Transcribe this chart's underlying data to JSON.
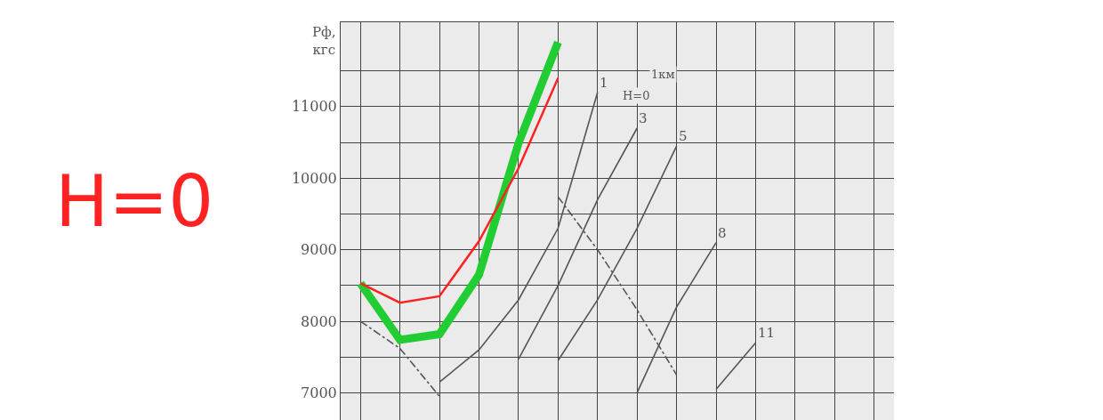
{
  "chart_data": {
    "type": "line",
    "ylabel": "Рф,\nкгс",
    "categories": [
      null,
      null,
      null,
      null,
      null,
      null,
      null,
      null,
      null,
      null,
      null,
      null,
      null,
      null
    ],
    "series": [
      {
        "color": "#22cc33",
        "values": [
          8530,
          7740,
          7820,
          8650,
          10490,
          11900,
          null,
          null,
          null,
          null,
          null,
          null,
          null,
          null
        ]
      },
      {
        "color": "#ff2222",
        "values": [
          8530,
          8260,
          8350,
          9120,
          10140,
          11400,
          null,
          null,
          null,
          null,
          null,
          null,
          null,
          null
        ]
      },
      {
        "name": "1",
        "color": "#555555",
        "values": [
          null,
          null,
          7150,
          7600,
          8300,
          9300,
          11200,
          null,
          null,
          null,
          null,
          null,
          null,
          null
        ]
      },
      {
        "name": "3",
        "color": "#555555",
        "values": [
          null,
          null,
          null,
          null,
          7470,
          8500,
          9700,
          10700,
          null,
          null,
          null,
          null,
          null,
          null
        ]
      },
      {
        "name": "5",
        "color": "#555555",
        "values": [
          null,
          null,
          null,
          null,
          null,
          7450,
          8300,
          9300,
          10450,
          null,
          null,
          null,
          null,
          null
        ]
      },
      {
        "name": "8",
        "color": "#555555",
        "values": [
          null,
          null,
          null,
          null,
          null,
          null,
          null,
          7000,
          8200,
          9100,
          null,
          null,
          null,
          null
        ]
      },
      {
        "name": "11",
        "color": "#555555",
        "values": [
          null,
          null,
          null,
          null,
          null,
          null,
          null,
          null,
          null,
          7050,
          7700,
          null,
          null,
          null
        ]
      },
      {
        "color": "#555555",
        "line_style": "dotted",
        "values": [
          8000,
          7620,
          6950,
          null,
          null,
          null,
          null,
          null,
          null,
          null,
          null,
          null,
          null,
          null
        ]
      },
      {
        "color": "#555555",
        "line_style": "dotted",
        "values": [
          null,
          null,
          null,
          null,
          null,
          9740,
          9000,
          8160,
          7250,
          null,
          null,
          null,
          null,
          null
        ]
      }
    ],
    "ylim": [
      6620,
      12180
    ],
    "yticks": [
      7000,
      {
        "value": 7500,
        "label": null
      },
      8000,
      {
        "value": 8500,
        "label": null
      },
      9000,
      {
        "value": 9500,
        "label": null
      },
      10000,
      {
        "value": 10500,
        "label": null
      },
      11000,
      {
        "value": 11500,
        "label": null
      }
    ],
    "grid": true,
    "legend": false,
    "marker": "none",
    "line_style": "solid",
    "annotations": [
      "H=0",
      "1км",
      "H=0"
    ]
  }
}
